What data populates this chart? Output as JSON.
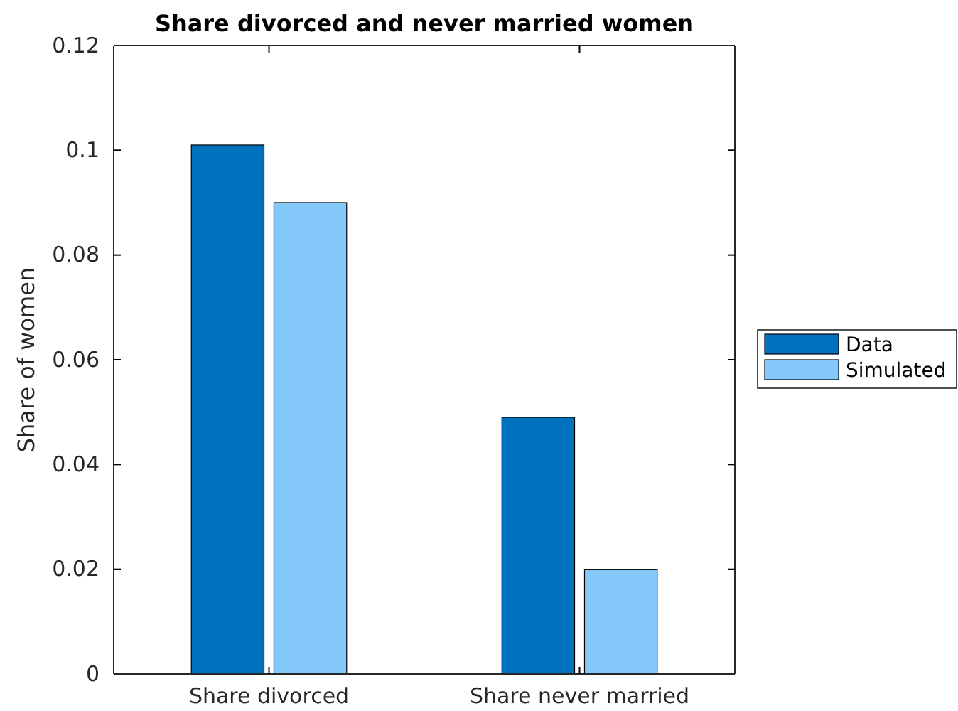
{
  "chart_data": {
    "type": "bar",
    "title": "Share divorced and never married women",
    "ylabel": "Share of women",
    "categories": [
      "Share divorced",
      "Share never married"
    ],
    "series": [
      {
        "name": "Data",
        "color": "#0072bd",
        "values": [
          0.101,
          0.049
        ]
      },
      {
        "name": "Simulated",
        "color": "#85c9fb",
        "values": [
          0.09,
          0.02
        ]
      }
    ],
    "ylim": [
      0,
      0.12
    ],
    "yticks": [
      0,
      0.02,
      0.04,
      0.06,
      0.08,
      0.1,
      0.12
    ],
    "grid": false,
    "legend": "right"
  }
}
